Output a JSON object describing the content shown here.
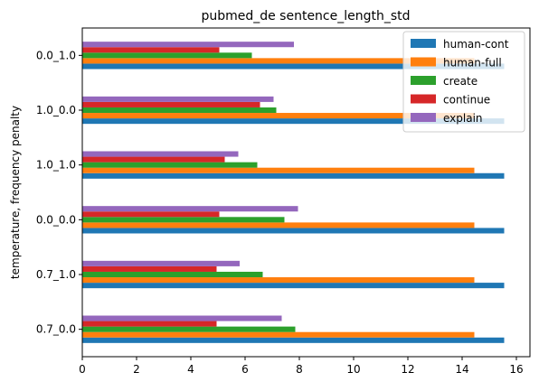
{
  "chart_data": {
    "type": "bar",
    "orientation": "horizontal",
    "title": "pubmed_de sentence_length_std",
    "xlabel": "",
    "ylabel": "temperature, frequency penalty",
    "categories": [
      "0.7_0.0",
      "0.7_1.0",
      "0.0_0.0",
      "1.0_1.0",
      "1.0_0.0",
      "0.0_1.0"
    ],
    "xlim": [
      0,
      16.5
    ],
    "xticks": [
      0,
      2,
      4,
      6,
      8,
      10,
      12,
      14,
      16
    ],
    "legend_position": "top-right",
    "series": [
      {
        "name": "human-cont",
        "color": "#1f77b4",
        "values": [
          15.55,
          15.55,
          15.55,
          15.55,
          15.55,
          15.55
        ]
      },
      {
        "name": "human-full",
        "color": "#ff7f0e",
        "values": [
          14.45,
          14.45,
          14.45,
          14.45,
          14.45,
          14.45
        ]
      },
      {
        "name": "create",
        "color": "#2ca02c",
        "values": [
          7.85,
          6.65,
          7.45,
          6.45,
          7.15,
          6.25
        ]
      },
      {
        "name": "continue",
        "color": "#d62728",
        "values": [
          4.95,
          4.95,
          5.05,
          5.25,
          6.55,
          5.05
        ]
      },
      {
        "name": "explain",
        "color": "#9467bd",
        "values": [
          7.35,
          5.8,
          7.95,
          5.75,
          7.05,
          7.8
        ]
      }
    ]
  }
}
